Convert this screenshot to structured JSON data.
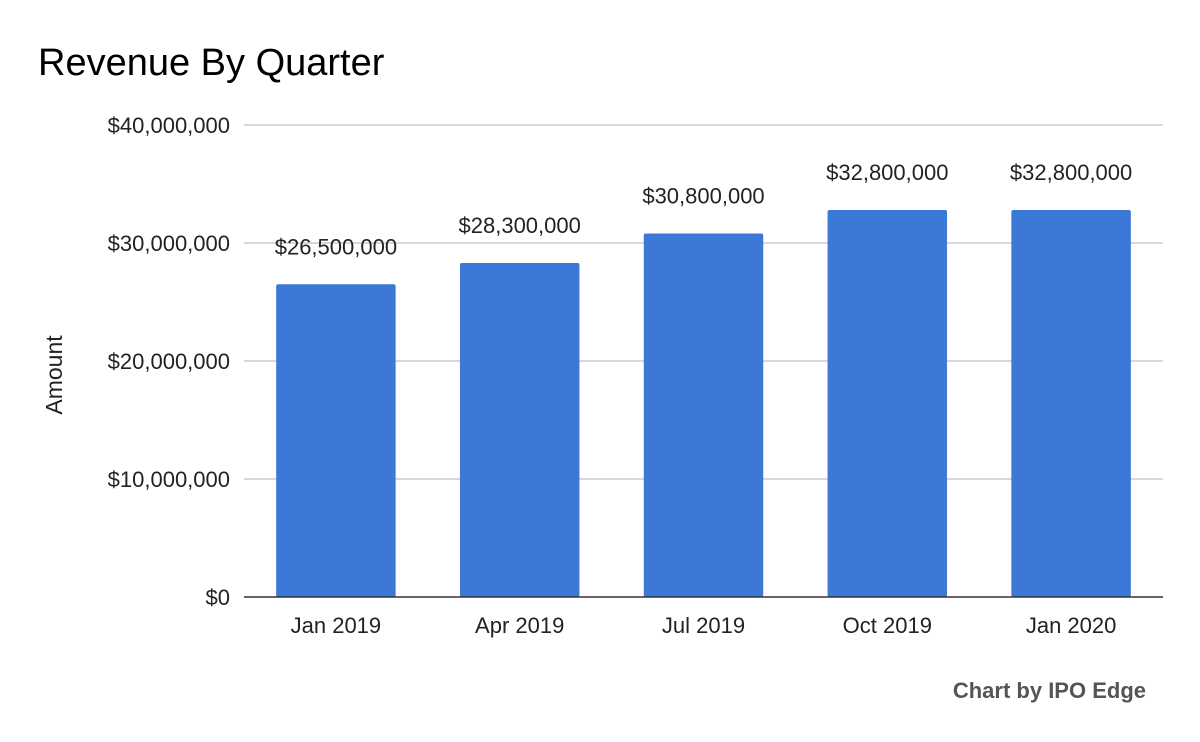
{
  "chart_data": {
    "type": "bar",
    "title": "Revenue By Quarter",
    "xlabel": "",
    "ylabel": "Amount",
    "categories": [
      "Jan 2019",
      "Apr 2019",
      "Jul 2019",
      "Oct 2019",
      "Jan 2020"
    ],
    "values": [
      26500000,
      28300000,
      30800000,
      32800000,
      32800000
    ],
    "data_labels": [
      "$26,500,000",
      "$28,300,000",
      "$30,800,000",
      "$32,800,000",
      "$32,800,000"
    ],
    "ylim": [
      0,
      40000000
    ],
    "y_ticks": [
      0,
      10000000,
      20000000,
      30000000,
      40000000
    ],
    "y_tick_labels": [
      "$0",
      "$10,000,000",
      "$20,000,000",
      "$30,000,000",
      "$40,000,000"
    ],
    "grid": true,
    "legend": "none",
    "bar_color": "#3c78d8",
    "gridline_color": "#cccccc",
    "baseline_color": "#333333"
  },
  "credit": "Chart by IPO Edge"
}
